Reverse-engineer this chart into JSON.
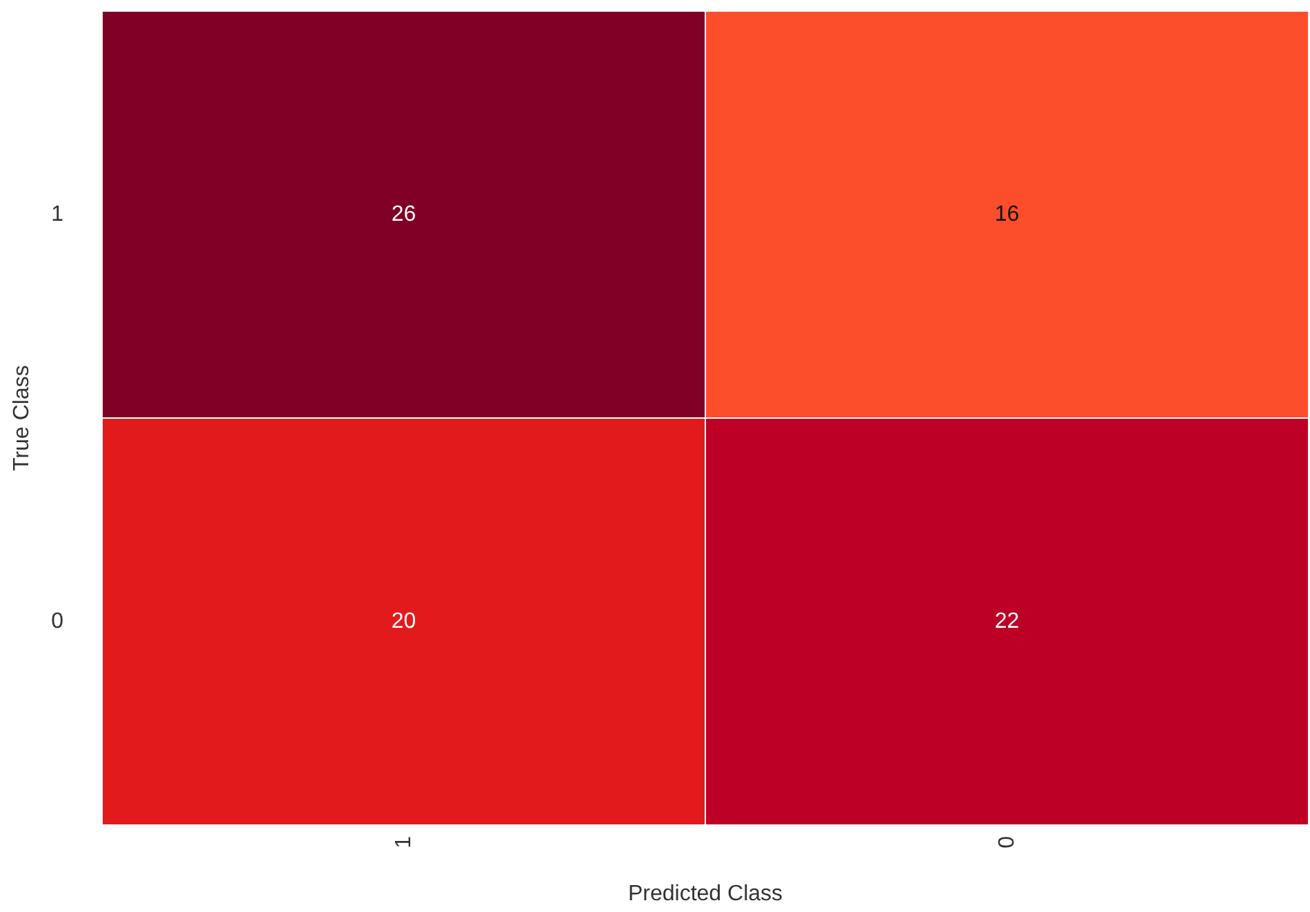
{
  "chart_data": {
    "type": "heatmap",
    "xlabel": "Predicted Class",
    "ylabel": "True Class",
    "categories": [
      "1",
      "0"
    ],
    "y_categories": [
      "1",
      "0"
    ],
    "cells": [
      [
        26,
        16
      ],
      [
        20,
        22
      ]
    ],
    "colors": [
      [
        "#800026",
        "#fc4e2a"
      ],
      [
        "#e31a1c",
        "#bd0026"
      ]
    ],
    "data_labels": true,
    "grid": false
  }
}
